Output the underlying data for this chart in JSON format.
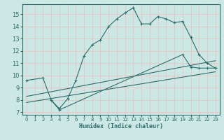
{
  "xlabel": "Humidex (Indice chaleur)",
  "background_color": "#cce8e4",
  "grid_color": "#e8c8c8",
  "line_color": "#2e6b6b",
  "xlim": [
    -0.5,
    23.5
  ],
  "ylim": [
    6.8,
    15.8
  ],
  "xticks": [
    0,
    1,
    2,
    3,
    4,
    5,
    6,
    7,
    8,
    9,
    10,
    11,
    12,
    13,
    14,
    15,
    16,
    17,
    18,
    19,
    20,
    21,
    22,
    23
  ],
  "yticks": [
    7,
    8,
    9,
    10,
    11,
    12,
    13,
    14,
    15
  ],
  "line1_x": [
    0,
    2,
    3,
    4,
    5,
    6,
    7,
    8,
    9,
    10,
    11,
    12,
    13,
    14,
    15,
    16,
    17,
    18,
    19,
    20,
    21,
    22,
    23
  ],
  "line1_y": [
    9.6,
    9.8,
    8.0,
    7.3,
    8.1,
    9.6,
    11.6,
    12.5,
    12.9,
    14.0,
    14.6,
    15.1,
    15.5,
    14.2,
    14.2,
    14.8,
    14.6,
    14.3,
    14.4,
    13.1,
    11.7,
    11.0,
    10.6
  ],
  "line2_x": [
    3,
    4,
    19,
    20,
    21,
    22,
    23
  ],
  "line2_y": [
    8.0,
    7.2,
    11.7,
    10.7,
    10.6,
    10.6,
    10.6
  ],
  "line3_x": [
    0,
    23
  ],
  "line3_y": [
    8.3,
    11.2
  ],
  "line4_x": [
    0,
    23
  ],
  "line4_y": [
    7.8,
    10.3
  ]
}
